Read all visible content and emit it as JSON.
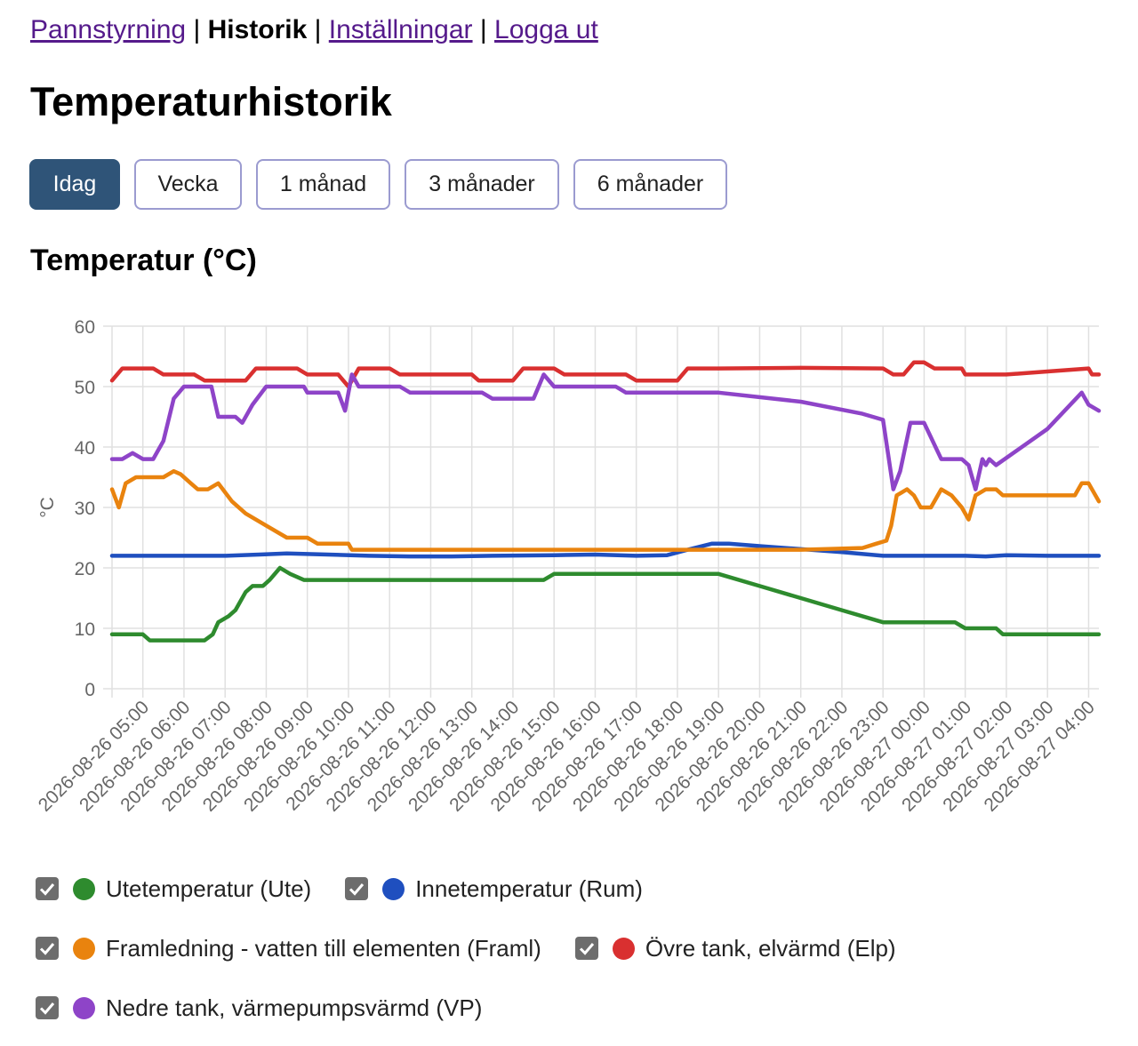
{
  "nav": {
    "items": [
      {
        "label": "Pannstyrning",
        "current": false
      },
      {
        "label": "Historik",
        "current": true
      },
      {
        "label": "Inställningar",
        "current": false
      },
      {
        "label": "Logga ut",
        "current": false
      }
    ],
    "separator": "|"
  },
  "page_title": "Temperaturhistorik",
  "range_buttons": [
    {
      "label": "Idag",
      "active": true
    },
    {
      "label": "Vecka",
      "active": false
    },
    {
      "label": "1 månad",
      "active": false
    },
    {
      "label": "3 månader",
      "active": false
    },
    {
      "label": "6 månader",
      "active": false
    }
  ],
  "chart_title": "Temperatur (°C)",
  "chart_data": {
    "type": "line",
    "title": "Temperatur (°C)",
    "xlabel": "",
    "ylabel": "°C",
    "ylim": [
      0,
      60
    ],
    "yticks": [
      0,
      10,
      20,
      30,
      40,
      50,
      60
    ],
    "grid": true,
    "legend_position": "bottom",
    "xlim": [
      "2026-08-26 04:15",
      "2026-08-27 04:15"
    ],
    "xtick_labels": [
      "2026-08-26 05:00",
      "2026-08-26 06:00",
      "2026-08-26 07:00",
      "2026-08-26 08:00",
      "2026-08-26 09:00",
      "2026-08-26 10:00",
      "2026-08-26 11:00",
      "2026-08-26 12:00",
      "2026-08-26 13:00",
      "2026-08-26 14:00",
      "2026-08-26 15:00",
      "2026-08-26 16:00",
      "2026-08-26 17:00",
      "2026-08-26 18:00",
      "2026-08-26 19:00",
      "2026-08-26 20:00",
      "2026-08-26 21:00",
      "2026-08-26 22:00",
      "2026-08-26 23:00",
      "2026-08-27 00:00",
      "2026-08-27 01:00",
      "2026-08-27 02:00",
      "2026-08-27 03:00",
      "2026-08-27 04:00"
    ],
    "series": [
      {
        "name": "Utetemperatur (Ute)",
        "color": "#2e8b2e",
        "points": [
          [
            "2026-08-26 04:15",
            9
          ],
          [
            "2026-08-26 04:45",
            9
          ],
          [
            "2026-08-26 05:00",
            9
          ],
          [
            "2026-08-26 05:10",
            8
          ],
          [
            "2026-08-26 06:30",
            8
          ],
          [
            "2026-08-26 06:42",
            9
          ],
          [
            "2026-08-26 06:50",
            11
          ],
          [
            "2026-08-26 07:05",
            12
          ],
          [
            "2026-08-26 07:15",
            13
          ],
          [
            "2026-08-26 07:30",
            16
          ],
          [
            "2026-08-26 07:40",
            17
          ],
          [
            "2026-08-26 07:55",
            17
          ],
          [
            "2026-08-26 08:05",
            18
          ],
          [
            "2026-08-26 08:20",
            20
          ],
          [
            "2026-08-26 08:35",
            19
          ],
          [
            "2026-08-26 08:55",
            18
          ],
          [
            "2026-08-26 14:45",
            18
          ],
          [
            "2026-08-26 15:00",
            19
          ],
          [
            "2026-08-26 19:00",
            19
          ],
          [
            "2026-08-26 20:00",
            17
          ],
          [
            "2026-08-26 21:00",
            15
          ],
          [
            "2026-08-26 22:00",
            13
          ],
          [
            "2026-08-26 23:00",
            11
          ],
          [
            "2026-08-27 00:45",
            11
          ],
          [
            "2026-08-27 01:00",
            10
          ],
          [
            "2026-08-27 01:45",
            10
          ],
          [
            "2026-08-27 01:55",
            9
          ],
          [
            "2026-08-27 04:15",
            9
          ]
        ]
      },
      {
        "name": "Innetemperatur (Rum)",
        "color": "#1f4fbf",
        "points": [
          [
            "2026-08-26 04:15",
            22
          ],
          [
            "2026-08-26 05:00",
            22
          ],
          [
            "2026-08-26 06:00",
            22
          ],
          [
            "2026-08-26 07:00",
            22
          ],
          [
            "2026-08-26 07:50",
            22.2
          ],
          [
            "2026-08-26 08:30",
            22.4
          ],
          [
            "2026-08-26 09:00",
            22.3
          ],
          [
            "2026-08-26 09:30",
            22.2
          ],
          [
            "2026-08-26 10:30",
            22
          ],
          [
            "2026-08-26 11:30",
            21.9
          ],
          [
            "2026-08-26 12:30",
            21.9
          ],
          [
            "2026-08-26 13:30",
            22
          ],
          [
            "2026-08-26 15:00",
            22.1
          ],
          [
            "2026-08-26 16:00",
            22.2
          ],
          [
            "2026-08-26 17:00",
            22
          ],
          [
            "2026-08-26 17:45",
            22.1
          ],
          [
            "2026-08-26 18:15",
            23
          ],
          [
            "2026-08-26 18:50",
            24
          ],
          [
            "2026-08-26 19:15",
            24
          ],
          [
            "2026-08-26 20:00",
            23.6
          ],
          [
            "2026-08-26 21:00",
            23.1
          ],
          [
            "2026-08-26 22:00",
            22.6
          ],
          [
            "2026-08-26 23:00",
            22
          ],
          [
            "2026-08-27 00:00",
            22
          ],
          [
            "2026-08-27 01:00",
            22
          ],
          [
            "2026-08-27 01:30",
            21.9
          ],
          [
            "2026-08-27 02:00",
            22.1
          ],
          [
            "2026-08-27 03:00",
            22
          ],
          [
            "2026-08-27 04:15",
            22
          ]
        ]
      },
      {
        "name": "Framledning - vatten till elementen (Framl)",
        "color": "#e9830e",
        "points": [
          [
            "2026-08-26 04:15",
            33
          ],
          [
            "2026-08-26 04:25",
            30
          ],
          [
            "2026-08-26 04:35",
            34
          ],
          [
            "2026-08-26 04:50",
            35
          ],
          [
            "2026-08-26 05:30",
            35
          ],
          [
            "2026-08-26 05:45",
            36
          ],
          [
            "2026-08-26 05:55",
            35.5
          ],
          [
            "2026-08-26 06:10",
            34
          ],
          [
            "2026-08-26 06:20",
            33
          ],
          [
            "2026-08-26 06:35",
            33
          ],
          [
            "2026-08-26 06:50",
            34
          ],
          [
            "2026-08-26 07:10",
            31
          ],
          [
            "2026-08-26 07:30",
            29
          ],
          [
            "2026-08-26 08:00",
            27
          ],
          [
            "2026-08-26 08:30",
            25
          ],
          [
            "2026-08-26 09:00",
            25
          ],
          [
            "2026-08-26 09:15",
            24
          ],
          [
            "2026-08-26 10:00",
            24
          ],
          [
            "2026-08-26 10:05",
            23
          ],
          [
            "2026-08-26 18:00",
            23
          ],
          [
            "2026-08-26 19:00",
            23
          ],
          [
            "2026-08-26 21:00",
            23
          ],
          [
            "2026-08-26 22:30",
            23.3
          ],
          [
            "2026-08-26 22:50",
            24
          ],
          [
            "2026-08-26 23:05",
            24.5
          ],
          [
            "2026-08-26 23:12",
            27
          ],
          [
            "2026-08-26 23:20",
            32
          ],
          [
            "2026-08-26 23:35",
            33
          ],
          [
            "2026-08-26 23:45",
            32
          ],
          [
            "2026-08-26 23:55",
            30
          ],
          [
            "2026-08-27 00:10",
            30
          ],
          [
            "2026-08-27 00:25",
            33
          ],
          [
            "2026-08-27 00:40",
            32
          ],
          [
            "2026-08-27 00:55",
            30
          ],
          [
            "2026-08-27 01:05",
            28
          ],
          [
            "2026-08-27 01:15",
            32
          ],
          [
            "2026-08-27 01:30",
            33
          ],
          [
            "2026-08-27 01:45",
            33
          ],
          [
            "2026-08-27 01:55",
            32
          ],
          [
            "2026-08-27 03:00",
            32
          ],
          [
            "2026-08-27 03:40",
            32
          ],
          [
            "2026-08-27 03:50",
            34
          ],
          [
            "2026-08-27 04:00",
            34
          ],
          [
            "2026-08-27 04:15",
            31
          ]
        ]
      },
      {
        "name": "Övre tank, elvärmd (Elp)",
        "color": "#d93030",
        "points": [
          [
            "2026-08-26 04:15",
            51
          ],
          [
            "2026-08-26 04:30",
            53
          ],
          [
            "2026-08-26 05:15",
            53
          ],
          [
            "2026-08-26 05:30",
            52
          ],
          [
            "2026-08-26 06:15",
            52
          ],
          [
            "2026-08-26 06:30",
            51
          ],
          [
            "2026-08-26 07:30",
            51
          ],
          [
            "2026-08-26 07:45",
            53
          ],
          [
            "2026-08-26 08:45",
            53
          ],
          [
            "2026-08-26 09:00",
            52
          ],
          [
            "2026-08-26 09:45",
            52
          ],
          [
            "2026-08-26 10:00",
            50
          ],
          [
            "2026-08-26 10:15",
            53
          ],
          [
            "2026-08-26 11:00",
            53
          ],
          [
            "2026-08-26 11:15",
            52
          ],
          [
            "2026-08-26 13:00",
            52
          ],
          [
            "2026-08-26 13:10",
            51
          ],
          [
            "2026-08-26 14:00",
            51
          ],
          [
            "2026-08-26 14:15",
            53
          ],
          [
            "2026-08-26 15:00",
            53
          ],
          [
            "2026-08-26 15:15",
            52
          ],
          [
            "2026-08-26 16:45",
            52
          ],
          [
            "2026-08-26 17:00",
            51
          ],
          [
            "2026-08-26 18:00",
            51
          ],
          [
            "2026-08-26 18:15",
            53
          ],
          [
            "2026-08-26 19:00",
            53
          ],
          [
            "2026-08-26 21:00",
            53.1
          ],
          [
            "2026-08-26 23:00",
            53
          ],
          [
            "2026-08-26 23:15",
            52
          ],
          [
            "2026-08-26 23:30",
            52
          ],
          [
            "2026-08-26 23:45",
            54
          ],
          [
            "2026-08-27 00:00",
            54
          ],
          [
            "2026-08-27 00:15",
            53
          ],
          [
            "2026-08-27 00:55",
            53
          ],
          [
            "2026-08-27 01:00",
            52
          ],
          [
            "2026-08-27 02:00",
            52
          ],
          [
            "2026-08-27 03:00",
            52.5
          ],
          [
            "2026-08-27 04:00",
            53
          ],
          [
            "2026-08-27 04:05",
            52
          ],
          [
            "2026-08-27 04:15",
            52
          ]
        ]
      },
      {
        "name": "Nedre tank, värmepumpsvärmd (VP)",
        "color": "#8e44c8",
        "points": [
          [
            "2026-08-26 04:15",
            38
          ],
          [
            "2026-08-26 04:30",
            38
          ],
          [
            "2026-08-26 04:45",
            39
          ],
          [
            "2026-08-26 05:00",
            38
          ],
          [
            "2026-08-26 05:15",
            38
          ],
          [
            "2026-08-26 05:30",
            41
          ],
          [
            "2026-08-26 05:45",
            48
          ],
          [
            "2026-08-26 06:00",
            50
          ],
          [
            "2026-08-26 06:40",
            50
          ],
          [
            "2026-08-26 06:50",
            45
          ],
          [
            "2026-08-26 07:15",
            45
          ],
          [
            "2026-08-26 07:25",
            44
          ],
          [
            "2026-08-26 07:40",
            47
          ],
          [
            "2026-08-26 08:00",
            50
          ],
          [
            "2026-08-26 08:55",
            50
          ],
          [
            "2026-08-26 09:00",
            49
          ],
          [
            "2026-08-26 09:45",
            49
          ],
          [
            "2026-08-26 09:55",
            46
          ],
          [
            "2026-08-26 10:05",
            52
          ],
          [
            "2026-08-26 10:15",
            50
          ],
          [
            "2026-08-26 11:15",
            50
          ],
          [
            "2026-08-26 11:30",
            49
          ],
          [
            "2026-08-26 13:15",
            49
          ],
          [
            "2026-08-26 13:30",
            48
          ],
          [
            "2026-08-26 14:30",
            48
          ],
          [
            "2026-08-26 14:45",
            52
          ],
          [
            "2026-08-26 15:00",
            50
          ],
          [
            "2026-08-26 16:30",
            50
          ],
          [
            "2026-08-26 16:45",
            49
          ],
          [
            "2026-08-26 19:00",
            49
          ],
          [
            "2026-08-26 21:00",
            47.5
          ],
          [
            "2026-08-26 22:30",
            45.5
          ],
          [
            "2026-08-26 23:00",
            44.5
          ],
          [
            "2026-08-26 23:15",
            33
          ],
          [
            "2026-08-26 23:25",
            36
          ],
          [
            "2026-08-26 23:40",
            44
          ],
          [
            "2026-08-27 00:00",
            44
          ],
          [
            "2026-08-27 00:25",
            38
          ],
          [
            "2026-08-27 00:55",
            38
          ],
          [
            "2026-08-27 01:05",
            37
          ],
          [
            "2026-08-27 01:15",
            33
          ],
          [
            "2026-08-27 01:25",
            38
          ],
          [
            "2026-08-27 01:30",
            37
          ],
          [
            "2026-08-27 01:35",
            38
          ],
          [
            "2026-08-27 01:45",
            37
          ],
          [
            "2026-08-27 03:00",
            43
          ],
          [
            "2026-08-27 03:50",
            49
          ],
          [
            "2026-08-27 04:00",
            47
          ],
          [
            "2026-08-27 04:15",
            46
          ]
        ]
      }
    ]
  },
  "legend": {
    "rows": [
      [
        0,
        1
      ],
      [
        2,
        3
      ],
      [
        4
      ]
    ],
    "checkbox_checked": true
  }
}
